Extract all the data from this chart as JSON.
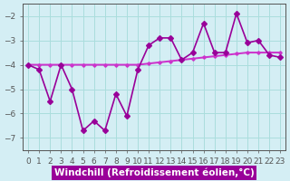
{
  "xlabel": "Windchill (Refroidissement éolien,°C)",
  "ylabel": "",
  "x_values": [
    0,
    1,
    2,
    3,
    4,
    5,
    6,
    7,
    8,
    9,
    10,
    11,
    12,
    13,
    14,
    15,
    16,
    17,
    18,
    19,
    20,
    21,
    22,
    23
  ],
  "windchill_data": [
    -4.0,
    -4.2,
    -5.5,
    -4.0,
    -5.0,
    -6.7,
    -6.3,
    -6.7,
    -5.2,
    -6.1,
    -4.2,
    -3.2,
    -2.9,
    -2.9,
    -3.8,
    -3.5,
    -2.3,
    -3.5,
    -3.5,
    -1.9,
    -3.1,
    -3.0,
    -3.6,
    -3.7
  ],
  "mean_line": [
    -4.0,
    -4.0,
    -4.0,
    -4.0,
    -4.0,
    -4.0,
    -4.0,
    -4.0,
    -4.0,
    -4.0,
    -4.0,
    -3.95,
    -3.9,
    -3.85,
    -3.8,
    -3.75,
    -3.7,
    -3.65,
    -3.6,
    -3.55,
    -3.5,
    -3.5,
    -3.5,
    -3.5
  ],
  "line_color": "#990099",
  "mean_color": "#cc33cc",
  "bg_color": "#d4eef4",
  "grid_color": "#aadddd",
  "ylim": [
    -7.5,
    -1.5
  ],
  "yticks": [
    -7,
    -6,
    -5,
    -4,
    -3,
    -2
  ],
  "xlim": [
    -0.5,
    23.5
  ],
  "marker": "D",
  "marker_size": 3,
  "line_width": 1.2,
  "axis_color": "#555555",
  "tick_fontsize": 6.5,
  "label_fontsize": 7.5
}
